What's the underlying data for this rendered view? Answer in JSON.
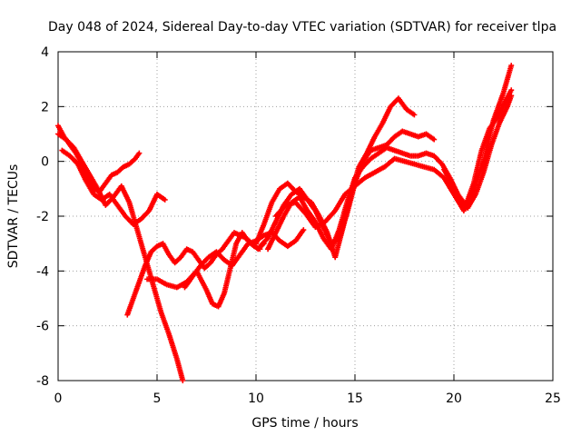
{
  "chart_data": {
    "type": "scatter",
    "title": "Day 048 of 2024, Sidereal Day-to-day VTEC variation (SDTVAR) for receiver tlpa",
    "xlabel": "GPS time / hours",
    "ylabel": "SDTVAR / TECUs",
    "xlim": [
      0,
      25
    ],
    "ylim": [
      -8,
      4
    ],
    "x_ticks": [
      0,
      5,
      10,
      15,
      20,
      25
    ],
    "y_ticks": [
      -8,
      -6,
      -4,
      -2,
      0,
      2,
      4
    ],
    "grid": true,
    "legend": "none",
    "marker": "+",
    "series_color": "#ff0000",
    "series": [
      {
        "name": "",
        "x": [
          0,
          0.3,
          0.6,
          0.9,
          1.2,
          1.5,
          1.8,
          2.1,
          2.4,
          2.7,
          3.0,
          3.3,
          3.6,
          3.9,
          4.1
        ],
        "y": [
          1.3,
          0.9,
          0.6,
          0.3,
          -0.1,
          -0.6,
          -1.0,
          -1.1,
          -0.8,
          -0.5,
          -0.4,
          -0.2,
          -0.1,
          0.1,
          0.3
        ]
      },
      {
        "name": "",
        "x": [
          0,
          0.4,
          0.8,
          1.2,
          1.6,
          2.0,
          2.4,
          2.8,
          3.2,
          3.6,
          4.0,
          4.4,
          4.8,
          5.2,
          5.6,
          6.0,
          6.3
        ],
        "y": [
          1.0,
          0.8,
          0.5,
          0.0,
          -0.5,
          -1.0,
          -1.6,
          -1.3,
          -0.9,
          -1.5,
          -2.5,
          -3.5,
          -4.5,
          -5.5,
          -6.3,
          -7.2,
          -8.0
        ]
      },
      {
        "name": "",
        "x": [
          0.2,
          0.6,
          1.0,
          1.4,
          1.8,
          2.2,
          2.6,
          3.0,
          3.4,
          3.8,
          4.2,
          4.6,
          5.0,
          5.4
        ],
        "y": [
          0.4,
          0.2,
          -0.1,
          -0.7,
          -1.2,
          -1.4,
          -1.2,
          -1.6,
          -2.0,
          -2.3,
          -2.1,
          -1.8,
          -1.2,
          -1.4
        ]
      },
      {
        "name": "",
        "x": [
          3.5,
          3.8,
          4.1,
          4.4,
          4.7,
          5.0,
          5.3,
          5.6,
          5.9,
          6.2,
          6.5,
          6.8,
          7.1,
          7.4,
          7.7,
          8.0,
          8.3,
          8.6,
          8.9,
          9.2,
          9.5,
          9.8,
          10.1,
          10.4
        ],
        "y": [
          -5.6,
          -5.0,
          -4.4,
          -3.8,
          -3.3,
          -3.1,
          -3.0,
          -3.4,
          -3.7,
          -3.5,
          -3.2,
          -3.3,
          -3.6,
          -3.9,
          -3.7,
          -3.4,
          -3.2,
          -2.9,
          -2.6,
          -2.7,
          -2.8,
          -3.0,
          -3.2,
          -3.0
        ]
      },
      {
        "name": "",
        "x": [
          4.5,
          5.0,
          5.5,
          6.0,
          6.5,
          7.0,
          7.5,
          7.8,
          8.1,
          8.4,
          8.7,
          9.0,
          9.3,
          9.6,
          9.9,
          10.2
        ],
        "y": [
          -4.3,
          -4.3,
          -4.5,
          -4.6,
          -4.4,
          -4.0,
          -4.7,
          -5.2,
          -5.3,
          -4.8,
          -3.9,
          -3.0,
          -2.6,
          -2.9,
          -3.1,
          -3.2
        ]
      },
      {
        "name": "",
        "x": [
          6.4,
          6.8,
          7.2,
          7.6,
          8.0,
          8.4,
          8.8,
          9.2,
          9.6,
          10.0,
          10.4,
          10.8,
          11.2,
          11.6,
          12.0,
          12.4
        ],
        "y": [
          -4.6,
          -4.2,
          -3.8,
          -3.5,
          -3.3,
          -3.6,
          -3.8,
          -3.4,
          -3.0,
          -2.9,
          -2.7,
          -2.6,
          -2.9,
          -3.1,
          -2.9,
          -2.5
        ]
      },
      {
        "name": "",
        "x": [
          10.0,
          10.4,
          10.8,
          11.2,
          11.6,
          12.0,
          12.4,
          12.8,
          13.2,
          13.6,
          14.0,
          14.4,
          14.8,
          15.2,
          15.6,
          16.0,
          16.4,
          16.8,
          17.2,
          17.6,
          18.0
        ],
        "y": [
          -3.0,
          -2.3,
          -1.5,
          -1.0,
          -0.8,
          -1.1,
          -1.3,
          -1.5,
          -2.0,
          -2.6,
          -3.5,
          -2.4,
          -1.2,
          -0.2,
          0.3,
          0.9,
          1.4,
          2.0,
          2.3,
          1.9,
          1.7
        ]
      },
      {
        "name": "",
        "x": [
          10.2,
          10.6,
          11.0,
          11.4,
          11.8,
          12.2,
          12.6,
          13.0,
          13.4,
          13.8,
          14.2,
          14.6,
          15.0,
          15.4,
          15.8,
          16.2,
          16.6,
          17.0,
          17.4,
          17.8,
          18.2,
          18.6,
          19.0
        ],
        "y": [
          -3.1,
          -2.8,
          -2.2,
          -1.6,
          -1.2,
          -1.0,
          -1.4,
          -1.8,
          -2.4,
          -3.0,
          -2.8,
          -1.9,
          -0.8,
          0.0,
          0.4,
          0.5,
          0.6,
          0.9,
          1.1,
          1.0,
          0.9,
          1.0,
          0.8
        ]
      },
      {
        "name": "",
        "x": [
          10.6,
          11.0,
          11.4,
          11.8,
          12.2,
          12.6,
          13.0,
          13.4,
          13.8,
          14.2,
          14.6,
          15.0,
          15.4,
          15.8,
          16.2,
          16.6,
          17.0,
          17.4,
          17.8,
          18.2,
          18.6,
          19.0,
          19.4,
          19.8,
          20.2,
          20.6,
          21.0,
          21.4,
          21.8,
          22.2,
          22.6,
          22.9
        ],
        "y": [
          -3.2,
          -2.6,
          -2.0,
          -1.5,
          -1.3,
          -1.8,
          -2.2,
          -2.8,
          -3.2,
          -2.5,
          -1.5,
          -0.6,
          -0.2,
          0.1,
          0.3,
          0.5,
          0.4,
          0.3,
          0.2,
          0.2,
          0.3,
          0.2,
          -0.1,
          -0.6,
          -1.2,
          -1.6,
          -0.8,
          0.4,
          1.2,
          1.6,
          2.2,
          2.6
        ]
      },
      {
        "name": "",
        "x": [
          11.0,
          11.5,
          12.0,
          12.5,
          13.0,
          13.5,
          14.0,
          14.5,
          15.0,
          15.5,
          16.0,
          16.5,
          17.0,
          17.5,
          18.0,
          18.5,
          19.0,
          19.5,
          20.0,
          20.5,
          21.0,
          21.5,
          22.0,
          22.5,
          22.9
        ],
        "y": [
          -2.0,
          -1.6,
          -1.5,
          -1.9,
          -2.4,
          -2.2,
          -1.8,
          -1.2,
          -0.9,
          -0.6,
          -0.4,
          -0.2,
          0.1,
          0.0,
          -0.1,
          -0.2,
          -0.3,
          -0.6,
          -1.2,
          -1.8,
          -1.0,
          0.0,
          1.5,
          2.5,
          3.5
        ]
      },
      {
        "name": "",
        "x": [
          19.5,
          19.9,
          20.3,
          20.7,
          21.1,
          21.5,
          21.9,
          22.3,
          22.7,
          22.9
        ],
        "y": [
          -0.3,
          -0.8,
          -1.4,
          -1.7,
          -1.2,
          -0.4,
          0.6,
          1.4,
          2.0,
          2.4
        ]
      }
    ]
  }
}
